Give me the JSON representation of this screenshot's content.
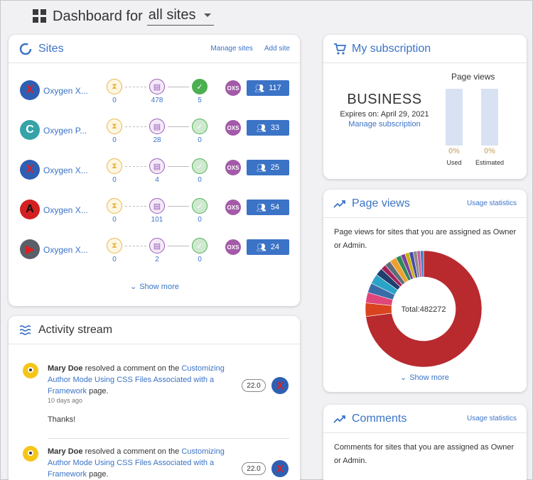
{
  "header": {
    "title": "Dashboard for",
    "site_filter": "all sites"
  },
  "sites_card": {
    "title": "Sites",
    "manage_link": "Manage sites",
    "add_link": "Add site",
    "show_more": "Show more",
    "rows": [
      {
        "name": "Oxygen X...",
        "logo_letter": "X",
        "logo_bg": "#2f5fb3",
        "logo_fg": "#e02020",
        "pending": "0",
        "comments": "478",
        "resolved": "5",
        "oxs": "OXS",
        "users": "117"
      },
      {
        "name": "Oxygen P...",
        "logo_letter": "C",
        "logo_bg": "#36a3a8",
        "logo_fg": "#ffffff",
        "pending": "0",
        "comments": "28",
        "resolved": "0",
        "oxs": "OXS",
        "users": "33"
      },
      {
        "name": "Oxygen X...",
        "logo_letter": "X",
        "logo_bg": "#2f5fb3",
        "logo_fg": "#e02020",
        "pending": "0",
        "comments": "4",
        "resolved": "0",
        "oxs": "OXS",
        "users": "25"
      },
      {
        "name": "Oxygen X...",
        "logo_letter": "A",
        "logo_bg": "#d32020",
        "logo_fg": "#111111",
        "pending": "0",
        "comments": "101",
        "resolved": "0",
        "oxs": "OXS",
        "users": "54"
      },
      {
        "name": "Oxygen X...",
        "logo_letter": "▶",
        "logo_bg": "#5a5f6a",
        "logo_fg": "#e02020",
        "pending": "0",
        "comments": "2",
        "resolved": "0",
        "oxs": "OXS",
        "users": "24"
      }
    ]
  },
  "activity": {
    "title": "Activity stream",
    "items": [
      {
        "user": "Mary Doe",
        "action": " resolved a comment on the ",
        "doc": "Customizing Author Mode Using CSS Files Associated with a Framework",
        "suffix": " page.",
        "time": "10 days ago",
        "message": "Thanks!",
        "version": "22.0"
      },
      {
        "user": "Mary Doe",
        "action": " resolved a comment on the ",
        "doc": "Customizing Author Mode Using CSS Files Associated with a Framework",
        "suffix": " page.",
        "time": "",
        "message": "",
        "version": "22.0"
      }
    ]
  },
  "subscription": {
    "title": "My subscription",
    "plan": "BUSINESS",
    "expires": "Expires on: April 29, 2021",
    "manage": "Manage subscription",
    "pv_title": "Page views",
    "used_pct": "0%",
    "used_label": "Used",
    "est_pct": "0%",
    "est_label": "Estimated"
  },
  "pageviews": {
    "title": "Page views",
    "link": "Usage statistics",
    "desc": "Page views for sites that you are assigned as Owner or Admin.",
    "total_label": "Total:482272",
    "show_more": "Show more"
  },
  "chart_data": {
    "type": "pie",
    "donut": true,
    "total": 482272,
    "slices": [
      {
        "value": 349000,
        "color": "#b82a2e"
      },
      {
        "value": 18000,
        "color": "#d9441f"
      },
      {
        "value": 14000,
        "color": "#e0457b"
      },
      {
        "value": 13000,
        "color": "#3a6da8"
      },
      {
        "value": 13000,
        "color": "#2aa3c9"
      },
      {
        "value": 10000,
        "color": "#1f3f6e"
      },
      {
        "value": 7000,
        "color": "#a4215a"
      },
      {
        "value": 8000,
        "color": "#5f6b78"
      },
      {
        "value": 9000,
        "color": "#f0a030"
      },
      {
        "value": 7000,
        "color": "#2e8b57"
      },
      {
        "value": 6000,
        "color": "#7e3fa0"
      },
      {
        "value": 5500,
        "color": "#c8b400"
      },
      {
        "value": 5500,
        "color": "#4a4aa8"
      },
      {
        "value": 5000,
        "color": "#8a8a8a"
      },
      {
        "value": 4500,
        "color": "#d05a9a"
      },
      {
        "value": 4272,
        "color": "#3f7fbf"
      }
    ]
  },
  "comments": {
    "title": "Comments",
    "link": "Usage statistics",
    "desc": "Comments for sites that you are assigned as Owner or Admin."
  },
  "colors": {
    "accent": "#3b73c6",
    "pending": "#e8b84a",
    "comments": "#9b59b6",
    "resolved": "#4caf50"
  }
}
